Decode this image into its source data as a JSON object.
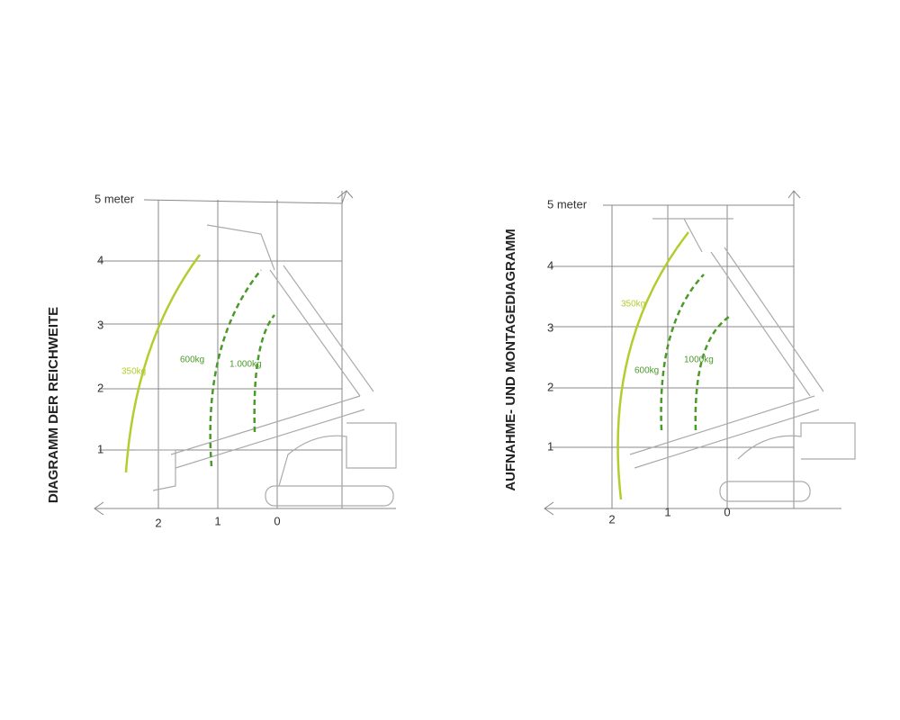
{
  "diagrams": [
    {
      "title": "DIAGRAMM DER REICHWEITE",
      "y_labels": [
        "5 meter",
        "4",
        "3",
        "2",
        "1"
      ],
      "x_labels": [
        "2",
        "1",
        "0"
      ],
      "curves": [
        "350kg",
        "600kg",
        "1.000kg"
      ]
    },
    {
      "title": "AUFNAHME- UND MONTAGEDIAGRAMM",
      "y_labels": [
        "5 meter",
        "4",
        "3",
        "2",
        "1"
      ],
      "x_labels": [
        "2",
        "1",
        "0"
      ],
      "curves": [
        "350kg",
        "600kg",
        "1000kg"
      ]
    }
  ]
}
